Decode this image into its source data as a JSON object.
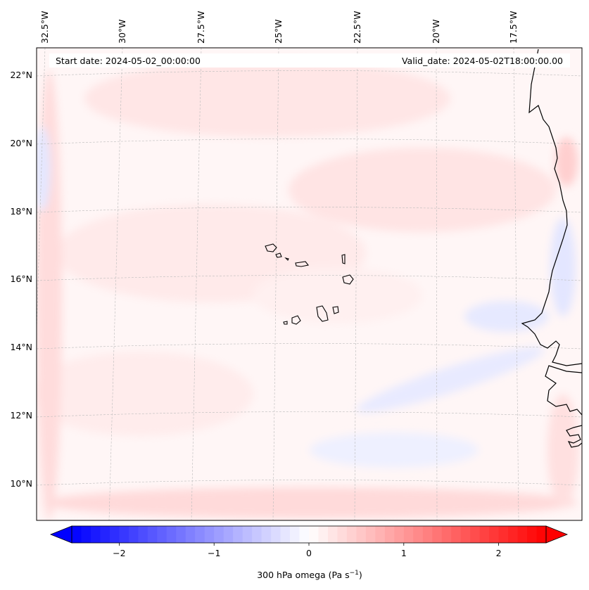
{
  "header": {
    "start_date": "Start date: 2024-05-02_00:00:00",
    "valid_date": "Valid_date: 2024-05-02T18:00:00.00"
  },
  "lon_labels": [
    "32.5°W",
    "30°W",
    "27.5°W",
    "25°W",
    "22.5°W",
    "20°W",
    "17.5°W"
  ],
  "lat_labels": [
    "22°N",
    "20°N",
    "18°N",
    "16°N",
    "14°N",
    "12°N",
    "10°N"
  ],
  "colorbar": {
    "tick_labels": [
      "−2",
      "−1",
      "0",
      "1",
      "2"
    ],
    "tick_values": [
      -2,
      -1,
      0,
      1,
      2
    ],
    "range": [
      -2.5,
      2.5
    ],
    "label_main": "300 hPa omega (Pa s",
    "label_exp": "−1",
    "label_close": ")",
    "colors": {
      "low": "#0000ff",
      "mid": "#ffffff",
      "high": "#ff0000"
    }
  },
  "colors": {
    "coastline": "#000000",
    "gridline": "#bbbbbb",
    "field_positive": "#ffe2e2",
    "field_negative": "#e6e8ff"
  }
}
